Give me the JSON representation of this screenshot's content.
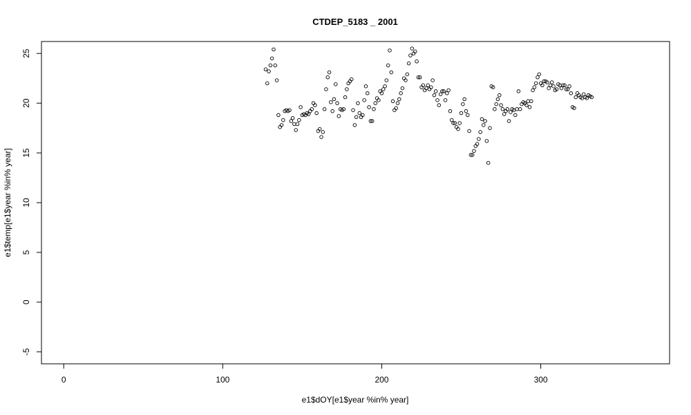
{
  "chart_data": {
    "type": "scatter",
    "title": "CTDEP_5183 _ 2001",
    "xlabel": "e1$dOY[e1$year %in% year]",
    "ylabel": "e1$temp[e1$year %in% year]",
    "xlim": [
      -14,
      381
    ],
    "ylim": [
      -6.2,
      26.2
    ],
    "xticks": [
      0,
      100,
      200,
      300
    ],
    "yticks": [
      -5,
      0,
      5,
      10,
      15,
      20,
      25
    ],
    "grid": false,
    "point_style": "open-circle",
    "points": [
      [
        127,
        23.4
      ],
      [
        128,
        22.0
      ],
      [
        129,
        23.2
      ],
      [
        130,
        23.8
      ],
      [
        131,
        24.5
      ],
      [
        132,
        25.4
      ],
      [
        133,
        23.8
      ],
      [
        134,
        22.3
      ],
      [
        135,
        18.8
      ],
      [
        136,
        17.6
      ],
      [
        137,
        17.8
      ],
      [
        138,
        18.3
      ],
      [
        139,
        19.2
      ],
      [
        140,
        19.3
      ],
      [
        141,
        19.2
      ],
      [
        142,
        19.3
      ],
      [
        143,
        18.2
      ],
      [
        144,
        18.5
      ],
      [
        145,
        17.9
      ],
      [
        146,
        17.3
      ],
      [
        147,
        17.9
      ],
      [
        148,
        18.3
      ],
      [
        149,
        19.6
      ],
      [
        150,
        18.8
      ],
      [
        151,
        18.9
      ],
      [
        152,
        18.8
      ],
      [
        153,
        19.0
      ],
      [
        154,
        18.9
      ],
      [
        155,
        19.2
      ],
      [
        156,
        19.4
      ],
      [
        157,
        20.0
      ],
      [
        158,
        19.8
      ],
      [
        159,
        19.0
      ],
      [
        160,
        17.2
      ],
      [
        161,
        17.4
      ],
      [
        162,
        16.6
      ],
      [
        163,
        17.1
      ],
      [
        164,
        19.4
      ],
      [
        165,
        21.4
      ],
      [
        166,
        22.6
      ],
      [
        167,
        23.1
      ],
      [
        168,
        20.1
      ],
      [
        169,
        19.2
      ],
      [
        170,
        20.4
      ],
      [
        171,
        21.9
      ],
      [
        172,
        20.0
      ],
      [
        173,
        18.7
      ],
      [
        174,
        19.4
      ],
      [
        175,
        19.3
      ],
      [
        176,
        19.4
      ],
      [
        177,
        20.6
      ],
      [
        178,
        21.4
      ],
      [
        179,
        22.0
      ],
      [
        180,
        22.2
      ],
      [
        181,
        22.4
      ],
      [
        182,
        19.3
      ],
      [
        183,
        17.8
      ],
      [
        184,
        18.6
      ],
      [
        185,
        20.0
      ],
      [
        186,
        19.0
      ],
      [
        187,
        18.6
      ],
      [
        188,
        18.8
      ],
      [
        189,
        20.3
      ],
      [
        190,
        21.7
      ],
      [
        191,
        21.0
      ],
      [
        192,
        19.6
      ],
      [
        193,
        18.2
      ],
      [
        194,
        18.2
      ],
      [
        195,
        19.4
      ],
      [
        196,
        20.0
      ],
      [
        197,
        20.5
      ],
      [
        198,
        20.3
      ],
      [
        199,
        21.2
      ],
      [
        200,
        21.0
      ],
      [
        201,
        21.4
      ],
      [
        202,
        21.7
      ],
      [
        203,
        22.3
      ],
      [
        204,
        23.8
      ],
      [
        205,
        25.3
      ],
      [
        206,
        23.1
      ],
      [
        207,
        20.2
      ],
      [
        208,
        19.3
      ],
      [
        209,
        19.5
      ],
      [
        210,
        20.0
      ],
      [
        211,
        20.4
      ],
      [
        212,
        21.0
      ],
      [
        213,
        21.5
      ],
      [
        214,
        22.5
      ],
      [
        215,
        22.3
      ],
      [
        216,
        22.9
      ],
      [
        217,
        24.0
      ],
      [
        218,
        24.8
      ],
      [
        219,
        25.5
      ],
      [
        220,
        25.0
      ],
      [
        221,
        25.2
      ],
      [
        222,
        24.2
      ],
      [
        223,
        22.6
      ],
      [
        224,
        22.6
      ],
      [
        225,
        21.6
      ],
      [
        226,
        21.8
      ],
      [
        227,
        21.3
      ],
      [
        228,
        21.5
      ],
      [
        229,
        21.8
      ],
      [
        230,
        21.4
      ],
      [
        231,
        21.6
      ],
      [
        232,
        22.3
      ],
      [
        233,
        20.8
      ],
      [
        234,
        21.2
      ],
      [
        235,
        20.3
      ],
      [
        236,
        19.8
      ],
      [
        237,
        20.9
      ],
      [
        238,
        21.2
      ],
      [
        239,
        21.2
      ],
      [
        240,
        20.3
      ],
      [
        241,
        21.0
      ],
      [
        242,
        21.3
      ],
      [
        243,
        19.2
      ],
      [
        244,
        18.3
      ],
      [
        245,
        18.0
      ],
      [
        246,
        18.0
      ],
      [
        247,
        17.6
      ],
      [
        248,
        17.4
      ],
      [
        249,
        18.0
      ],
      [
        250,
        19.0
      ],
      [
        251,
        19.9
      ],
      [
        252,
        20.4
      ],
      [
        253,
        19.2
      ],
      [
        254,
        18.8
      ],
      [
        255,
        17.2
      ],
      [
        256,
        14.8
      ],
      [
        257,
        14.8
      ],
      [
        258,
        15.2
      ],
      [
        259,
        15.7
      ],
      [
        260,
        15.9
      ],
      [
        261,
        16.4
      ],
      [
        262,
        17.1
      ],
      [
        263,
        18.4
      ],
      [
        264,
        17.8
      ],
      [
        265,
        18.2
      ],
      [
        266,
        16.2
      ],
      [
        267,
        14.0
      ],
      [
        268,
        17.5
      ],
      [
        269,
        21.7
      ],
      [
        270,
        21.6
      ],
      [
        271,
        19.4
      ],
      [
        272,
        19.9
      ],
      [
        273,
        20.4
      ],
      [
        274,
        20.8
      ],
      [
        275,
        19.8
      ],
      [
        276,
        19.4
      ],
      [
        277,
        18.9
      ],
      [
        278,
        19.2
      ],
      [
        279,
        19.4
      ],
      [
        280,
        18.2
      ],
      [
        281,
        19.1
      ],
      [
        282,
        19.4
      ],
      [
        283,
        19.3
      ],
      [
        284,
        18.8
      ],
      [
        285,
        19.4
      ],
      [
        286,
        21.2
      ],
      [
        287,
        19.4
      ],
      [
        288,
        19.9
      ],
      [
        289,
        20.1
      ],
      [
        290,
        20.0
      ],
      [
        291,
        19.8
      ],
      [
        292,
        20.2
      ],
      [
        293,
        19.6
      ],
      [
        294,
        20.2
      ],
      [
        295,
        21.3
      ],
      [
        296,
        21.6
      ],
      [
        297,
        22.0
      ],
      [
        298,
        22.6
      ],
      [
        299,
        22.9
      ],
      [
        300,
        22.0
      ],
      [
        301,
        21.8
      ],
      [
        302,
        22.2
      ],
      [
        303,
        22.2
      ],
      [
        304,
        22.1
      ],
      [
        305,
        21.5
      ],
      [
        306,
        21.8
      ],
      [
        307,
        22.1
      ],
      [
        308,
        21.7
      ],
      [
        309,
        21.3
      ],
      [
        310,
        21.4
      ],
      [
        311,
        21.9
      ],
      [
        312,
        21.8
      ],
      [
        313,
        21.5
      ],
      [
        314,
        21.8
      ],
      [
        315,
        21.8
      ],
      [
        316,
        21.4
      ],
      [
        317,
        21.4
      ],
      [
        318,
        21.7
      ],
      [
        319,
        21.0
      ],
      [
        320,
        19.6
      ],
      [
        321,
        19.5
      ],
      [
        322,
        20.6
      ],
      [
        323,
        21.0
      ],
      [
        324,
        20.8
      ],
      [
        325,
        20.6
      ],
      [
        326,
        20.5
      ],
      [
        327,
        20.9
      ],
      [
        328,
        20.6
      ],
      [
        329,
        20.5
      ],
      [
        330,
        20.8
      ],
      [
        331,
        20.7
      ],
      [
        332,
        20.6
      ]
    ]
  }
}
